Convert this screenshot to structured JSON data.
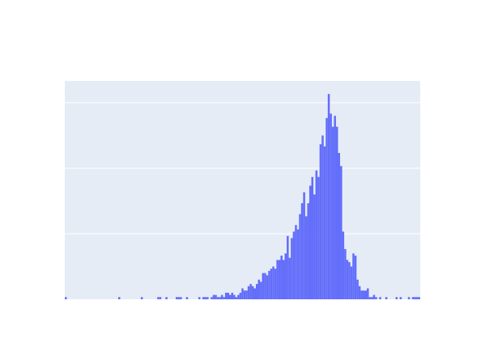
{
  "chart_data": {
    "type": "bar",
    "title": "",
    "xlabel": "",
    "ylabel": "",
    "grid": true,
    "legend": "none",
    "ylim": [
      0,
      100
    ],
    "gridlines": [
      0,
      30,
      60,
      90
    ],
    "values": [
      1,
      0,
      0,
      0,
      0,
      0,
      0,
      0,
      0,
      0,
      0,
      0,
      0,
      0,
      0,
      0,
      0,
      0,
      0,
      0,
      0,
      0,
      0,
      0,
      0,
      0,
      1,
      0,
      0,
      0,
      0,
      0,
      0,
      0,
      0,
      0,
      0,
      1,
      0,
      0,
      0,
      0,
      0,
      0,
      0,
      1,
      1,
      0,
      0,
      1,
      0,
      0,
      0,
      0,
      1,
      1,
      1,
      0,
      0,
      1,
      0,
      0,
      0,
      0,
      0,
      1,
      0,
      1,
      1,
      1,
      0,
      1,
      2,
      2,
      1,
      1,
      2,
      1,
      3,
      3,
      2,
      3,
      2,
      1,
      2,
      3,
      5,
      4,
      4,
      6,
      7,
      6,
      5,
      7,
      9,
      8,
      12,
      12,
      11,
      13,
      14,
      15,
      14,
      18,
      18,
      20,
      18,
      21,
      29,
      19,
      28,
      31,
      34,
      32,
      39,
      44,
      49,
      38,
      44,
      52,
      56,
      48,
      59,
      56,
      71,
      75,
      70,
      83,
      94,
      85,
      79,
      84,
      79,
      67,
      61,
      31,
      23,
      18,
      17,
      15,
      21,
      20,
      9,
      6,
      4,
      4,
      4,
      5,
      1,
      1,
      2,
      1,
      0,
      1,
      0,
      0,
      1,
      0,
      0,
      0,
      0,
      1,
      0,
      1,
      0,
      0,
      0,
      1,
      0,
      1,
      1,
      1,
      1
    ]
  }
}
